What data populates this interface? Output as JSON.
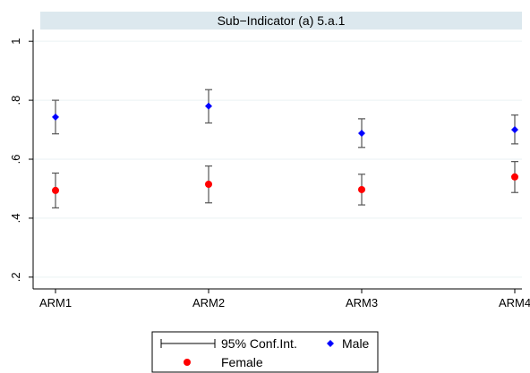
{
  "chart_data": {
    "type": "scatter",
    "title": "Sub−Indicator (a) 5.a.1",
    "categories": [
      "ARM1",
      "ARM2",
      "ARM3",
      "ARM4"
    ],
    "ylim": [
      0.16,
      1.04
    ],
    "yticks": [
      0.2,
      0.4,
      0.6,
      0.8,
      1.0
    ],
    "ytick_labels": [
      ".2",
      ".4",
      ".6",
      ".8",
      "1"
    ],
    "grid": true,
    "legend_position": "bottom",
    "series": [
      {
        "name": "Male",
        "marker": "diamond",
        "color": "#0000ff",
        "values": [
          0.743,
          0.78,
          0.688,
          0.7
        ],
        "ci_low": [
          0.686,
          0.723,
          0.64,
          0.652
        ],
        "ci_high": [
          0.8,
          0.836,
          0.737,
          0.75
        ]
      },
      {
        "name": "Female",
        "marker": "circle",
        "color": "#ff0000",
        "values": [
          0.494,
          0.515,
          0.497,
          0.54
        ],
        "ci_low": [
          0.435,
          0.452,
          0.445,
          0.487
        ],
        "ci_high": [
          0.553,
          0.577,
          0.549,
          0.592
        ]
      }
    ],
    "ci_color": "#555555",
    "legend": {
      "ci_label": "95% Conf.Int.",
      "male_label": "Male",
      "female_label": "Female"
    },
    "panel_color": "#dce8ee"
  }
}
